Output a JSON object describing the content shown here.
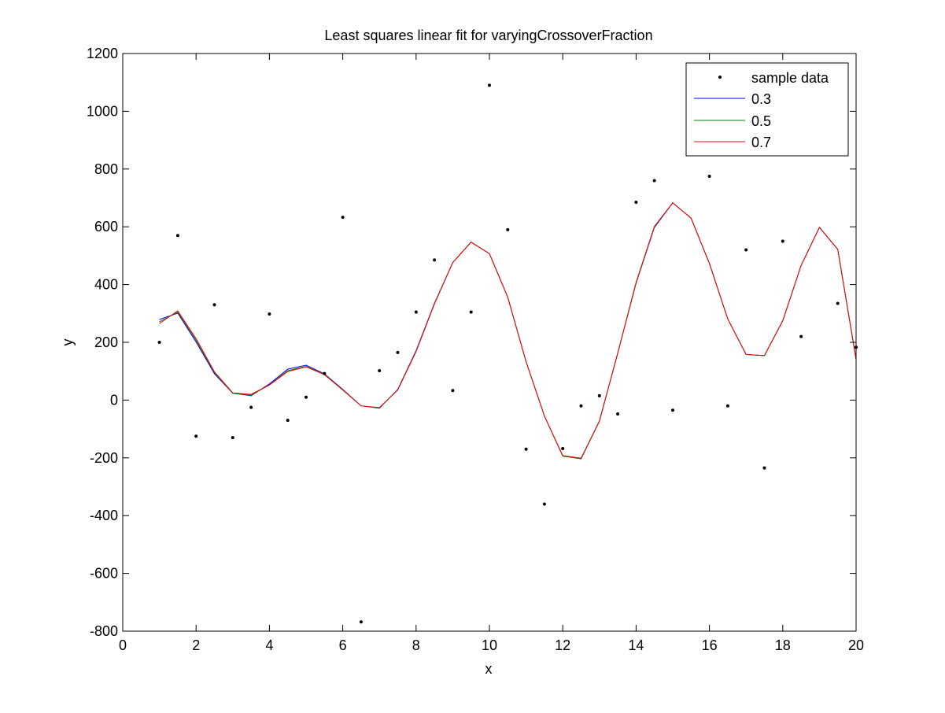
{
  "chart_data": {
    "type": "scatter",
    "title": "Least squares linear fit for varyingCrossoverFraction",
    "xlabel": "x",
    "ylabel": "y",
    "xlim": [
      0,
      20
    ],
    "ylim": [
      -800,
      1200
    ],
    "xticks": [
      0,
      2,
      4,
      6,
      8,
      10,
      12,
      14,
      16,
      18,
      20
    ],
    "yticks": [
      -800,
      -600,
      -400,
      -200,
      0,
      200,
      400,
      600,
      800,
      1000,
      1200
    ],
    "xtick_labels": [
      "0",
      "2",
      "4",
      "6",
      "8",
      "10",
      "12",
      "14",
      "16",
      "18",
      "20"
    ],
    "ytick_labels": [
      "-800",
      "-600",
      "-400",
      "-200",
      "0",
      "200",
      "400",
      "600",
      "800",
      "1000",
      "1200"
    ],
    "grid": false,
    "legend_position": "top-right",
    "sample_data": {
      "name": "sample data",
      "color": "#000000",
      "x": [
        1,
        1.5,
        2,
        2.5,
        3,
        3.5,
        4,
        4.5,
        5,
        5.5,
        6,
        6.5,
        7,
        7.5,
        8,
        8.5,
        9,
        9.5,
        10,
        10.5,
        11,
        11.5,
        12,
        12.5,
        13,
        13.5,
        14,
        14.5,
        15,
        15.5,
        16,
        16.5,
        17,
        17.5,
        18,
        18.5,
        19,
        19.5,
        20
      ],
      "y": [
        200,
        570,
        -125,
        330,
        -130,
        -25,
        298,
        -70,
        10,
        92,
        633,
        -768,
        102,
        165,
        305,
        485,
        33,
        305,
        1090,
        590,
        -170,
        -360,
        -168,
        -20,
        15,
        -48,
        685,
        760,
        -35,
        null,
        775,
        -20,
        520,
        -235,
        550,
        220,
        null,
        335,
        183
      ]
    },
    "series": [
      {
        "name": "0.3",
        "color": "#0000ff",
        "x": [
          1,
          1.5,
          2,
          2.5,
          3,
          3.5,
          4,
          4.5,
          5,
          5.5,
          6,
          6.5,
          7,
          7.5,
          8,
          8.5,
          9,
          9.5,
          10,
          10.5,
          11,
          11.5,
          12,
          12.5,
          13,
          13.5,
          14,
          14.5,
          15,
          15.5,
          16,
          16.5,
          17,
          17.5,
          18,
          18.5,
          19,
          19.5,
          20
        ],
        "values": [
          279,
          301,
          201,
          91,
          24,
          15,
          56,
          107,
          121,
          91,
          37,
          -20,
          -28,
          37,
          171,
          335,
          476,
          547,
          507,
          356,
          133,
          -55,
          -194,
          -203,
          -73,
          163,
          405,
          598,
          683,
          630,
          473,
          281,
          158,
          154,
          275,
          466,
          598,
          522,
          141
        ]
      },
      {
        "name": "0.5",
        "color": "#008000",
        "x": [
          1,
          1.5,
          2,
          2.5,
          3,
          3.5,
          4,
          4.5,
          5,
          5.5,
          6,
          6.5,
          7,
          7.5,
          8,
          8.5,
          9,
          9.5,
          10,
          10.5,
          11,
          11.5,
          12,
          12.5,
          13,
          13.5,
          14,
          14.5,
          15,
          15.5,
          16,
          16.5,
          17,
          17.5,
          18,
          18.5,
          19,
          19.5,
          20
        ],
        "values": [
          271,
          305,
          207,
          95,
          24,
          17,
          53,
          102,
          117,
          89,
          36,
          -20,
          -27,
          36,
          169,
          333,
          476,
          547,
          507,
          356,
          133,
          -55,
          -194,
          -203,
          -73,
          163,
          408,
          601,
          683,
          630,
          473,
          281,
          158,
          154,
          275,
          466,
          598,
          522,
          141
        ]
      },
      {
        "name": "0.7",
        "color": "#ff0000",
        "x": [
          1,
          1.5,
          2,
          2.5,
          3,
          3.5,
          4,
          4.5,
          5,
          5.5,
          6,
          6.5,
          7,
          7.5,
          8,
          8.5,
          9,
          9.5,
          10,
          10.5,
          11,
          11.5,
          12,
          12.5,
          13,
          13.5,
          14,
          14.5,
          15,
          15.5,
          16,
          16.5,
          17,
          17.5,
          18,
          18.5,
          19,
          19.5,
          20
        ],
        "values": [
          265,
          309,
          213,
          98,
          25,
          20,
          52,
          99,
          115,
          88,
          35,
          -20,
          -26,
          35,
          168,
          333,
          476,
          547,
          507,
          356,
          133,
          -55,
          -192,
          -201,
          -72,
          163,
          405,
          601,
          683,
          630,
          473,
          281,
          158,
          154,
          275,
          466,
          598,
          522,
          141
        ]
      }
    ]
  }
}
